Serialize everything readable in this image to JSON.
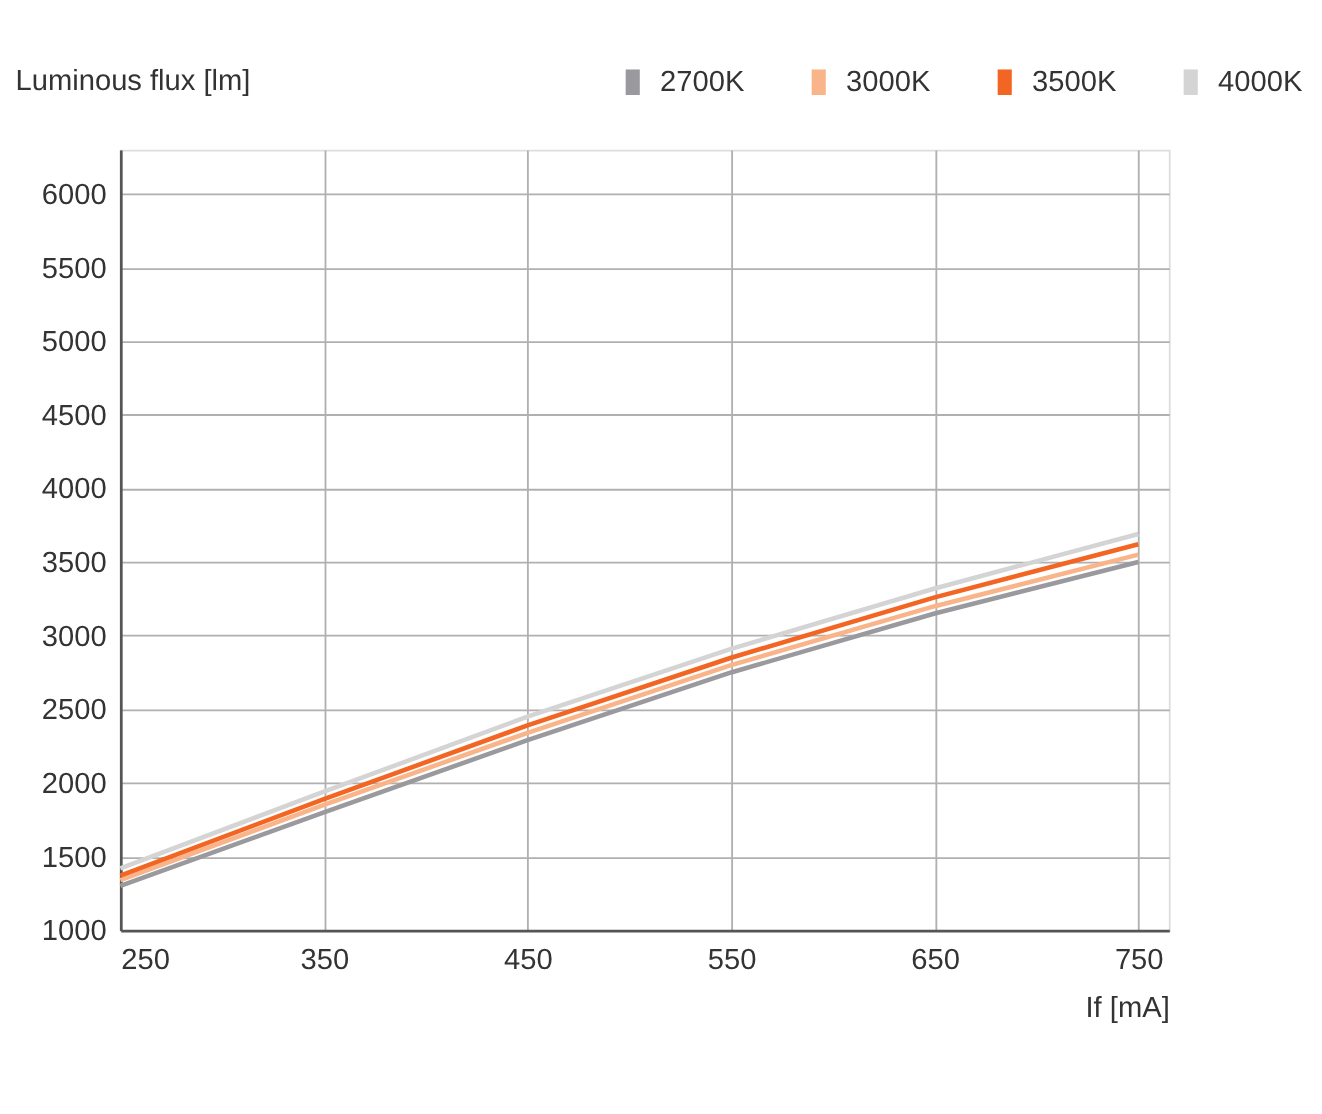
{
  "chart_data": {
    "type": "line",
    "xlabel": "If [mA]",
    "ylabel": "Luminous flux [lm]",
    "x": [
      250,
      350,
      450,
      550,
      650,
      750
    ],
    "series": [
      {
        "name": "2700K",
        "color": "#9a9a9e",
        "values": [
          1300,
          1800,
          2290,
          2750,
          3150,
          3500
        ]
      },
      {
        "name": "3000K",
        "color": "#f9b48a",
        "values": [
          1340,
          1850,
          2340,
          2800,
          3200,
          3550
        ]
      },
      {
        "name": "3500K",
        "color": "#f26522",
        "values": [
          1370,
          1890,
          2390,
          2850,
          3260,
          3620
        ]
      },
      {
        "name": "4000K",
        "color": "#d4d4d4",
        "values": [
          1420,
          1940,
          2450,
          2910,
          3320,
          3690
        ]
      }
    ],
    "xlim": [
      250,
      765
    ],
    "ylim": [
      1000,
      6300
    ],
    "xticks": [
      250,
      350,
      450,
      550,
      650,
      750
    ],
    "yticks": [
      1000,
      1500,
      2000,
      2500,
      3000,
      3500,
      4000,
      4500,
      5000,
      5500,
      6000
    ],
    "grid": true,
    "legend": "top right",
    "marker": "none",
    "line_style": "solid"
  }
}
